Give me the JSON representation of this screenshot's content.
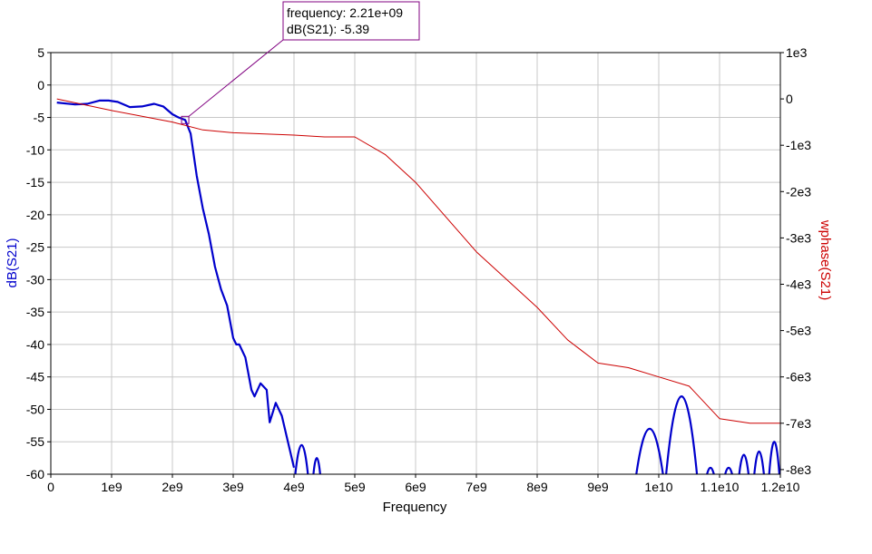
{
  "chart_data": {
    "type": "line",
    "xlabel": "Frequency",
    "x_ticks": [
      "0",
      "1e9",
      "2e9",
      "3e9",
      "4e9",
      "5e9",
      "6e9",
      "7e9",
      "8e9",
      "9e9",
      "1e10",
      "1.1e10",
      "1.2e10"
    ],
    "xlim": [
      0,
      12000000000
    ],
    "left_axis": {
      "label": "dB(S21)",
      "color": "#0000cc",
      "ylim": [
        -60,
        5
      ],
      "ticks": [
        "5",
        "0",
        "-5",
        "-10",
        "-15",
        "-20",
        "-25",
        "-30",
        "-35",
        "-40",
        "-45",
        "-50",
        "-55",
        "-60"
      ]
    },
    "right_axis": {
      "label": "wphase(S21)",
      "color": "#cc0000",
      "ylim": [
        -8100,
        1000
      ],
      "ticks": [
        "1e3",
        "0",
        "-1e3",
        "-2e3",
        "-3e3",
        "-4e3",
        "-5e3",
        "-6e3",
        "-7e3",
        "-8e3"
      ]
    },
    "grid": true,
    "series": [
      {
        "name": "dB(S21)",
        "axis": "left",
        "color": "#0000cc",
        "x": [
          100000000.0,
          400000000.0,
          600000000.0,
          800000000.0,
          950000000.0,
          1100000000.0,
          1300000000.0,
          1500000000.0,
          1700000000.0,
          1850000000.0,
          2000000000.0,
          2100000000.0,
          2210000000.0,
          2300000000.0,
          2400000000.0,
          2500000000.0,
          2600000000.0,
          2700000000.0,
          2800000000.0,
          2900000000.0,
          3000000000.0,
          3050000000.0,
          3100000000.0,
          3200000000.0,
          3300000000.0,
          3350000000.0,
          3450000000.0,
          3550000000.0,
          3600000000.0,
          3700000000.0,
          3800000000.0,
          3900000000.0,
          4000000000.0
        ],
        "values": [
          -2.7,
          -3.0,
          -2.9,
          -2.4,
          -2.4,
          -2.6,
          -3.4,
          -3.3,
          -2.9,
          -3.3,
          -4.5,
          -5.0,
          -5.39,
          -7.5,
          -14,
          -19,
          -23,
          -28,
          -31.5,
          -34,
          -39,
          -40,
          -40,
          -42,
          -47,
          -48,
          -46,
          -47,
          -52,
          -49,
          -51,
          -55,
          -59
        ]
      },
      {
        "name": "wphase(S21)",
        "axis": "right",
        "color": "#cc0000",
        "x": [
          100000000.0,
          1000000000.0,
          2000000000.0,
          2500000000.0,
          3000000000.0,
          4000000000.0,
          4500000000.0,
          5000000000.0,
          5500000000.0,
          6000000000.0,
          7000000000.0,
          8000000000.0,
          8500000000.0,
          9000000000.0,
          9500000000.0,
          10000000000.0,
          10500000000.0,
          11000000000.0,
          11500000000.0,
          12000000000.0
        ],
        "values": [
          0,
          -250,
          -500,
          -670,
          -730,
          -780,
          -820,
          -820,
          -1200,
          -1800,
          -3300,
          -4500,
          -5200,
          -5700,
          -5800,
          -6000,
          -6200,
          -6900,
          -7000,
          -7000
        ]
      }
    ],
    "annotations": [
      {
        "x": 2210000000.0,
        "y": -5.39,
        "lines": [
          "frequency: 2.21e+09",
          "dB(S21): -5.39"
        ]
      }
    ]
  }
}
